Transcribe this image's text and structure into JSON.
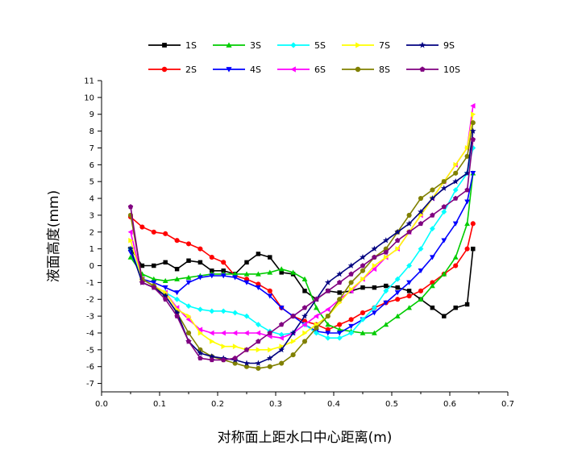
{
  "chart_data": {
    "type": "line",
    "xlabel": "对称面上距水口中心距离(m)",
    "ylabel": "液面高度(mm)",
    "xlim": [
      0.0,
      0.7
    ],
    "ylim": [
      -7.5,
      11
    ],
    "x_ticks": [
      "0.0",
      "0.1",
      "0.2",
      "0.3",
      "0.4",
      "0.5",
      "0.6",
      "0.7"
    ],
    "y_ticks": [
      "-7",
      "-6",
      "-5",
      "-4",
      "-3",
      "-2",
      "-1",
      "0",
      "1",
      "2",
      "3",
      "4",
      "5",
      "6",
      "7",
      "8",
      "9",
      "10",
      "11"
    ],
    "grid": false,
    "legend_position": "top",
    "series": [
      {
        "name": "1S",
        "color": "#000000",
        "marker": "square",
        "x": [
          0.05,
          0.07,
          0.09,
          0.11,
          0.13,
          0.15,
          0.17,
          0.19,
          0.21,
          0.23,
          0.25,
          0.27,
          0.29,
          0.31,
          0.33,
          0.35,
          0.37,
          0.39,
          0.41,
          0.43,
          0.45,
          0.47,
          0.49,
          0.51,
          0.53,
          0.55,
          0.57,
          0.59,
          0.61,
          0.63,
          0.64
        ],
        "y": [
          1.0,
          0.0,
          0.0,
          0.2,
          -0.2,
          0.3,
          0.2,
          -0.3,
          -0.3,
          -0.5,
          0.2,
          0.7,
          0.5,
          -0.4,
          -0.5,
          -1.5,
          -2.0,
          -1.5,
          -1.6,
          -1.5,
          -1.3,
          -1.3,
          -1.2,
          -1.3,
          -1.5,
          -2.0,
          -2.5,
          -3.0,
          -2.5,
          -2.3,
          1.0
        ]
      },
      {
        "name": "2S",
        "color": "#ff0000",
        "marker": "circle",
        "x": [
          0.05,
          0.07,
          0.09,
          0.11,
          0.13,
          0.15,
          0.17,
          0.19,
          0.21,
          0.23,
          0.25,
          0.27,
          0.29,
          0.31,
          0.33,
          0.35,
          0.37,
          0.39,
          0.41,
          0.43,
          0.45,
          0.47,
          0.49,
          0.51,
          0.53,
          0.55,
          0.57,
          0.59,
          0.61,
          0.63,
          0.64
        ],
        "y": [
          2.9,
          2.3,
          2.0,
          1.9,
          1.5,
          1.3,
          1.0,
          0.5,
          0.2,
          -0.6,
          -0.8,
          -1.1,
          -1.5,
          -2.5,
          -3.0,
          -3.3,
          -3.5,
          -3.8,
          -3.5,
          -3.2,
          -2.8,
          -2.5,
          -2.2,
          -2.0,
          -1.8,
          -1.5,
          -1.0,
          -0.5,
          0.0,
          1.0,
          2.5
        ]
      },
      {
        "name": "3S",
        "color": "#00cc00",
        "marker": "triangle-up",
        "x": [
          0.05,
          0.07,
          0.09,
          0.11,
          0.13,
          0.15,
          0.17,
          0.19,
          0.21,
          0.23,
          0.25,
          0.27,
          0.29,
          0.31,
          0.33,
          0.35,
          0.37,
          0.39,
          0.41,
          0.43,
          0.45,
          0.47,
          0.49,
          0.51,
          0.53,
          0.55,
          0.57,
          0.59,
          0.61,
          0.63,
          0.64
        ],
        "y": [
          0.5,
          -0.5,
          -0.8,
          -0.9,
          -0.8,
          -0.7,
          -0.6,
          -0.5,
          -0.5,
          -0.5,
          -0.5,
          -0.5,
          -0.4,
          -0.2,
          -0.4,
          -0.8,
          -2.5,
          -3.5,
          -3.8,
          -3.9,
          -4.0,
          -4.0,
          -3.5,
          -3.0,
          -2.5,
          -2.0,
          -1.2,
          -0.5,
          0.5,
          2.5,
          5.5
        ]
      },
      {
        "name": "4S",
        "color": "#0000ff",
        "marker": "triangle-down",
        "x": [
          0.05,
          0.07,
          0.09,
          0.11,
          0.13,
          0.15,
          0.17,
          0.19,
          0.21,
          0.23,
          0.25,
          0.27,
          0.29,
          0.31,
          0.33,
          0.35,
          0.37,
          0.39,
          0.41,
          0.43,
          0.45,
          0.47,
          0.49,
          0.51,
          0.53,
          0.55,
          0.57,
          0.59,
          0.61,
          0.63,
          0.64
        ],
        "y": [
          0.8,
          -0.8,
          -1.0,
          -1.3,
          -1.6,
          -1.0,
          -0.7,
          -0.6,
          -0.6,
          -0.7,
          -1.0,
          -1.3,
          -1.8,
          -2.5,
          -3.0,
          -3.5,
          -3.9,
          -4.0,
          -4.0,
          -3.6,
          -3.2,
          -2.8,
          -2.2,
          -1.6,
          -1.0,
          -0.3,
          0.5,
          1.5,
          2.5,
          3.8,
          5.5
        ]
      },
      {
        "name": "5S",
        "color": "#00ffff",
        "marker": "diamond",
        "x": [
          0.05,
          0.07,
          0.09,
          0.11,
          0.13,
          0.15,
          0.17,
          0.19,
          0.21,
          0.23,
          0.25,
          0.27,
          0.29,
          0.31,
          0.33,
          0.35,
          0.37,
          0.39,
          0.41,
          0.43,
          0.45,
          0.47,
          0.49,
          0.51,
          0.53,
          0.55,
          0.57,
          0.59,
          0.61,
          0.63,
          0.64
        ],
        "y": [
          1.0,
          -0.8,
          -1.2,
          -1.6,
          -2.0,
          -2.4,
          -2.6,
          -2.7,
          -2.7,
          -2.8,
          -3.0,
          -3.5,
          -3.9,
          -4.1,
          -4.0,
          -3.5,
          -4.0,
          -4.3,
          -4.3,
          -4.0,
          -3.2,
          -2.5,
          -1.5,
          -0.8,
          0.0,
          1.0,
          2.2,
          3.2,
          4.5,
          5.5,
          7.0
        ]
      },
      {
        "name": "6S",
        "color": "#ff00ff",
        "marker": "triangle-left",
        "x": [
          0.05,
          0.07,
          0.09,
          0.11,
          0.13,
          0.15,
          0.17,
          0.19,
          0.21,
          0.23,
          0.25,
          0.27,
          0.29,
          0.31,
          0.33,
          0.35,
          0.37,
          0.39,
          0.41,
          0.43,
          0.45,
          0.47,
          0.49,
          0.51,
          0.53,
          0.55,
          0.57,
          0.59,
          0.61,
          0.63,
          0.64
        ],
        "y": [
          2.0,
          -0.8,
          -1.2,
          -1.6,
          -2.5,
          -3.2,
          -3.8,
          -4.0,
          -4.0,
          -4.0,
          -4.0,
          -4.0,
          -4.2,
          -4.3,
          -4.0,
          -3.5,
          -3.0,
          -2.6,
          -2.0,
          -1.5,
          -0.8,
          -0.2,
          0.5,
          1.0,
          2.0,
          3.0,
          4.0,
          5.0,
          6.0,
          7.0,
          9.5
        ]
      },
      {
        "name": "7S",
        "color": "#ffff00",
        "marker": "triangle-right",
        "x": [
          0.05,
          0.07,
          0.09,
          0.11,
          0.13,
          0.15,
          0.17,
          0.19,
          0.21,
          0.23,
          0.25,
          0.27,
          0.29,
          0.31,
          0.33,
          0.35,
          0.37,
          0.39,
          0.41,
          0.43,
          0.45,
          0.47,
          0.49,
          0.51,
          0.53,
          0.55,
          0.57,
          0.59,
          0.61,
          0.63,
          0.64
        ],
        "y": [
          1.5,
          -0.8,
          -1.2,
          -1.6,
          -2.6,
          -3.0,
          -4.0,
          -4.5,
          -4.8,
          -4.8,
          -5.0,
          -5.0,
          -5.0,
          -4.8,
          -4.5,
          -4.0,
          -3.5,
          -3.0,
          -2.2,
          -1.4,
          -0.8,
          0.0,
          0.5,
          1.0,
          2.0,
          3.0,
          4.0,
          5.0,
          6.0,
          7.0,
          9.0
        ]
      },
      {
        "name": "8S",
        "color": "#808000",
        "marker": "circle",
        "x": [
          0.05,
          0.07,
          0.09,
          0.11,
          0.13,
          0.15,
          0.17,
          0.19,
          0.21,
          0.23,
          0.25,
          0.27,
          0.29,
          0.31,
          0.33,
          0.35,
          0.37,
          0.39,
          0.41,
          0.43,
          0.45,
          0.47,
          0.49,
          0.51,
          0.53,
          0.55,
          0.57,
          0.59,
          0.61,
          0.63,
          0.64
        ],
        "y": [
          3.0,
          -0.8,
          -1.2,
          -1.8,
          -2.8,
          -4.0,
          -5.0,
          -5.4,
          -5.6,
          -5.8,
          -6.0,
          -6.1,
          -6.0,
          -5.8,
          -5.3,
          -4.5,
          -3.7,
          -3.0,
          -2.0,
          -1.0,
          -0.3,
          0.5,
          1.0,
          2.0,
          3.0,
          4.0,
          4.5,
          5.0,
          5.5,
          6.5,
          8.5
        ]
      },
      {
        "name": "9S",
        "color": "#000080",
        "marker": "star",
        "x": [
          0.05,
          0.07,
          0.09,
          0.11,
          0.13,
          0.15,
          0.17,
          0.19,
          0.21,
          0.23,
          0.25,
          0.27,
          0.29,
          0.31,
          0.33,
          0.35,
          0.37,
          0.39,
          0.41,
          0.43,
          0.45,
          0.47,
          0.49,
          0.51,
          0.53,
          0.55,
          0.57,
          0.59,
          0.61,
          0.63,
          0.64
        ],
        "y": [
          1.0,
          -1.0,
          -1.3,
          -1.8,
          -2.8,
          -4.5,
          -5.2,
          -5.4,
          -5.5,
          -5.6,
          -5.8,
          -5.8,
          -5.5,
          -5.0,
          -4.0,
          -3.0,
          -2.0,
          -1.0,
          -0.5,
          0.0,
          0.5,
          1.0,
          1.5,
          2.0,
          2.5,
          3.2,
          4.0,
          4.6,
          5.0,
          5.5,
          8.0
        ]
      },
      {
        "name": "10S",
        "color": "#800080",
        "marker": "pentagon",
        "x": [
          0.05,
          0.07,
          0.09,
          0.11,
          0.13,
          0.15,
          0.17,
          0.19,
          0.21,
          0.23,
          0.25,
          0.27,
          0.29,
          0.31,
          0.33,
          0.35,
          0.37,
          0.39,
          0.41,
          0.43,
          0.45,
          0.47,
          0.49,
          0.51,
          0.53,
          0.55,
          0.57,
          0.59,
          0.61,
          0.63,
          0.64
        ],
        "y": [
          3.5,
          -1.0,
          -1.3,
          -2.0,
          -3.0,
          -4.5,
          -5.5,
          -5.6,
          -5.6,
          -5.5,
          -5.0,
          -4.5,
          -4.0,
          -3.5,
          -3.0,
          -2.5,
          -2.0,
          -1.5,
          -1.0,
          -0.5,
          0.0,
          0.5,
          0.8,
          1.5,
          2.0,
          2.5,
          3.0,
          3.5,
          4.0,
          4.5,
          7.5
        ]
      }
    ]
  }
}
